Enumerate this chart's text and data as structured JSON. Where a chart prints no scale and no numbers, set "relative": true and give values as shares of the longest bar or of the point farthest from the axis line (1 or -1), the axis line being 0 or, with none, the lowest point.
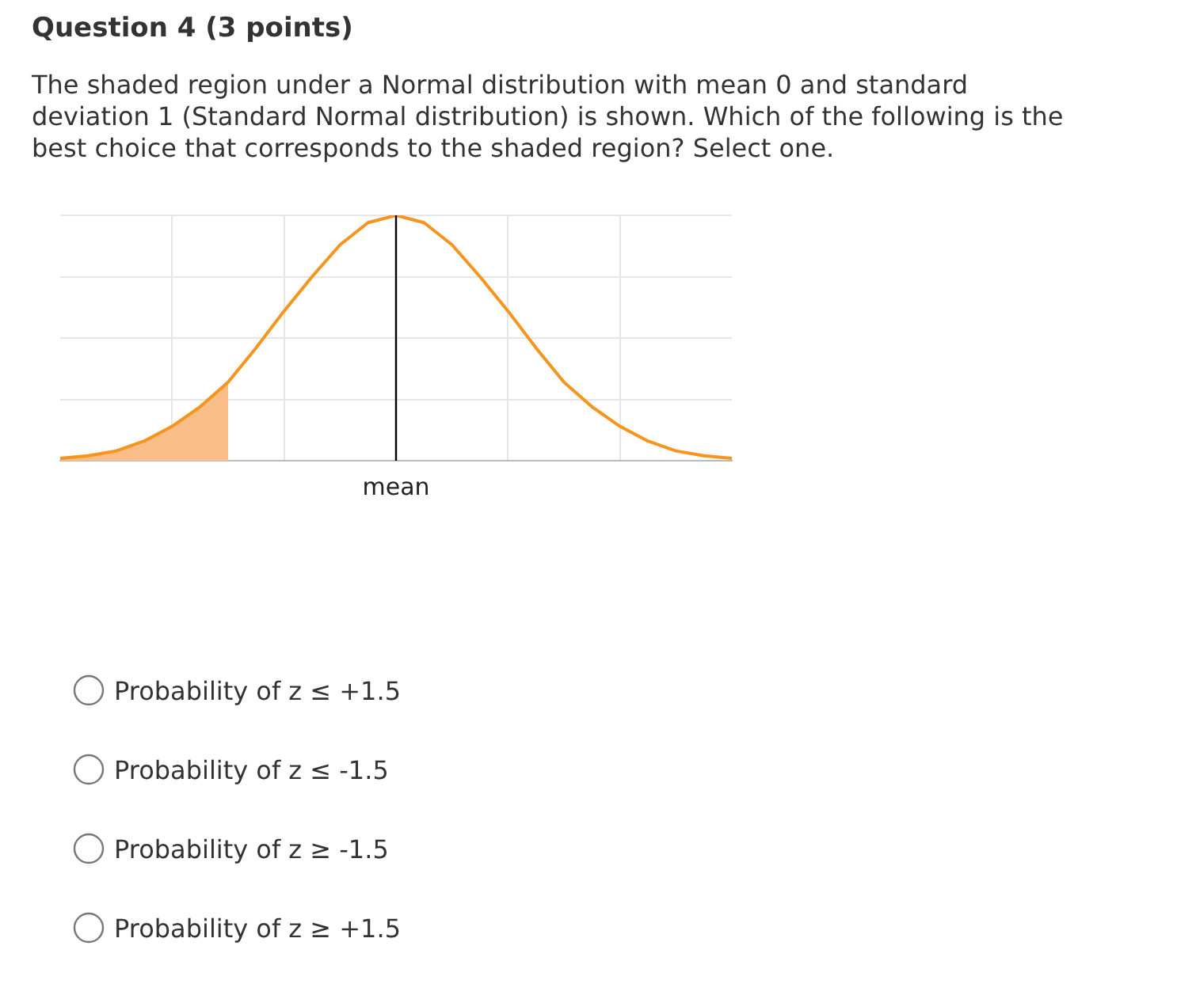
{
  "chart_data": {
    "type": "line",
    "title": "Question 4 (3 points)",
    "subtitle": "The shaded region under a Normal distribution with mean 0 and standard deviation 1 (Standard Normal distribution) is shown. Which of the following is the best choice that corresponds to the shaded region? Select one.",
    "relative": true,
    "categories": [
      null,
      null,
      null,
      null,
      null,
      null,
      null,
      null,
      null,
      null,
      null,
      null,
      null,
      null,
      null,
      null,
      null,
      null,
      null,
      null,
      null,
      null,
      null,
      null,
      null
    ],
    "series": [
      {
        "type": "line",
        "color": "#f7941d",
        "values": [
          0.01,
          0.02,
          0.04,
          0.08,
          0.14,
          0.22,
          0.32,
          0.46,
          0.61,
          0.75,
          0.88,
          0.97,
          1,
          0.97,
          0.88,
          0.75,
          0.61,
          0.46,
          0.32,
          0.22,
          0.14,
          0.08,
          0.04,
          0.02,
          0.01
        ]
      },
      {
        "type": "area",
        "color": "#f9be87",
        "values": [
          0.01,
          0.02,
          0.04,
          0.08,
          0.14,
          0.22,
          0.32,
          null,
          null,
          null,
          null,
          null,
          null,
          null,
          null,
          null,
          null,
          null,
          null,
          null,
          null,
          null,
          null,
          null,
          null
        ]
      }
    ],
    "annotations": [
      "mean",
      "Probability of z ≤ +1.5",
      "Probability of z ≤ -1.5",
      "Probability of z ≥ -1.5",
      "Probability of z ≥ +1.5"
    ],
    "grid": true,
    "legend": false,
    "tick_labels": "x",
    "marker": "none",
    "line_style": "solid"
  }
}
